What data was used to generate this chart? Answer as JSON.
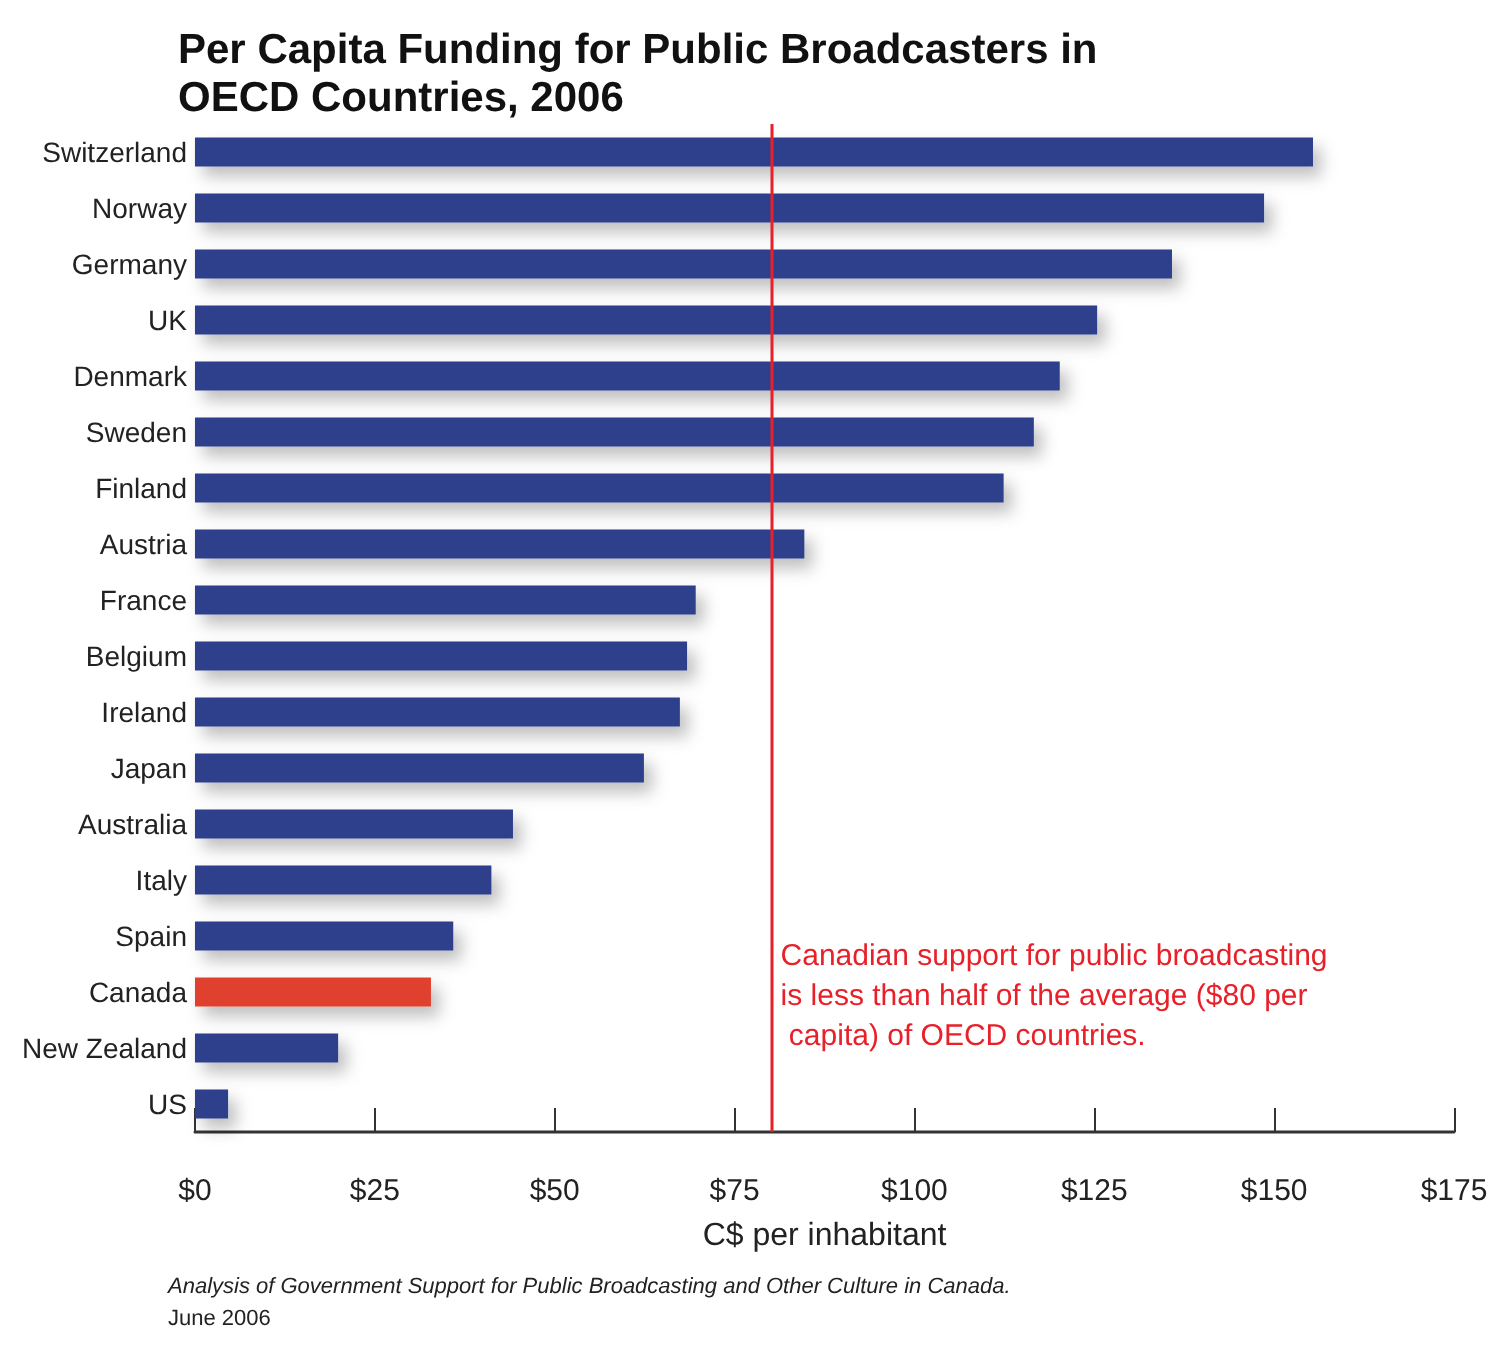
{
  "chart_data": {
    "type": "bar",
    "orientation": "horizontal",
    "title": "Per Capita Funding for Public Broadcasters in OECD Countries, 2006",
    "xlabel": "C$ per inhabitant",
    "categories": [
      "Switzerland",
      "Norway",
      "Germany",
      "UK",
      "Denmark",
      "Sweden",
      "Finland",
      "Austria",
      "France",
      "Belgium",
      "Ireland",
      "Japan",
      "Australia",
      "Italy",
      "Spain",
      "Canada",
      "New Zealand",
      "US"
    ],
    "values": [
      155.4,
      148.6,
      135.8,
      125.4,
      120.2,
      116.6,
      112.4,
      84.7,
      69.6,
      68.4,
      67.4,
      62.4,
      44.2,
      41.2,
      35.9,
      32.8,
      19.9,
      4.6
    ],
    "colors": [
      "#2e3f8c",
      "#2e3f8c",
      "#2e3f8c",
      "#2e3f8c",
      "#2e3f8c",
      "#2e3f8c",
      "#2e3f8c",
      "#2e3f8c",
      "#2e3f8c",
      "#2e3f8c",
      "#2e3f8c",
      "#2e3f8c",
      "#2e3f8c",
      "#2e3f8c",
      "#2e3f8c",
      "#e0402f",
      "#2e3f8c",
      "#2e3f8c"
    ],
    "xlim": [
      0,
      175
    ],
    "xticks": [
      {
        "value": 0,
        "label": "$0"
      },
      {
        "value": 25,
        "label": "$25"
      },
      {
        "value": 50,
        "label": "$50"
      },
      {
        "value": 75,
        "label": "$75"
      },
      {
        "value": 100,
        "label": "$100"
      },
      {
        "value": 125,
        "label": "$125"
      },
      {
        "value": 150,
        "label": "$150"
      },
      {
        "value": 175,
        "label": "$175"
      }
    ],
    "ref_lines": [
      {
        "axis": "x",
        "value": 80,
        "label": "Canadian support for public broadcasting is less than half of the average ($80 per capita) of OECD countries.",
        "color": "#e8202a"
      }
    ],
    "grid": false,
    "annotations": [
      "Analysis of Government Support for Public Broadcasting and Other Culture in Canada.",
      "June 2006"
    ]
  }
}
